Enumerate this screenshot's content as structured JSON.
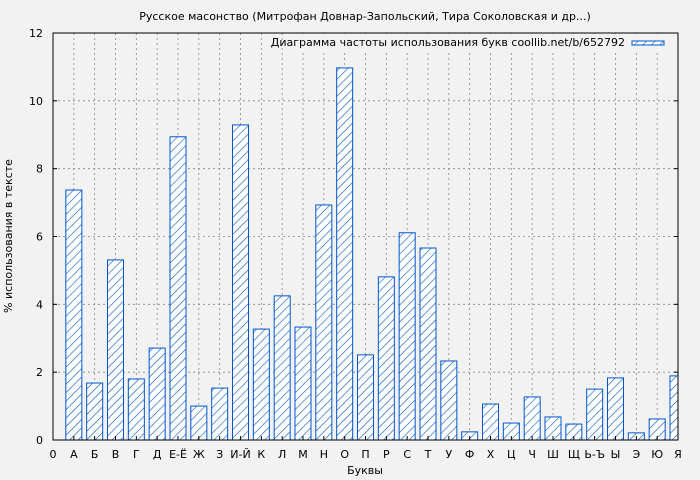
{
  "chart_data": {
    "type": "bar",
    "title": "Русское масонство (Митрофан Довнар-Запольский, Тира Соколовская и др...)",
    "xlabel": "Буквы",
    "ylabel": "% использования в тексте",
    "x_zero_label": "0",
    "categories": [
      "А",
      "Б",
      "В",
      "Г",
      "Д",
      "Е-Ё",
      "Ж",
      "З",
      "И-Й",
      "К",
      "Л",
      "М",
      "Н",
      "О",
      "П",
      "Р",
      "С",
      "Т",
      "У",
      "Ф",
      "Х",
      "Ц",
      "Ч",
      "Ш",
      "Щ",
      "Ь-Ъ",
      "Ы",
      "Э",
      "Ю",
      "Я"
    ],
    "series": [
      {
        "name": "Диаграмма частоты использования букв coollib.net/b/652792",
        "values": [
          7.37,
          1.68,
          5.31,
          1.8,
          2.71,
          8.94,
          1.0,
          1.53,
          9.29,
          3.27,
          4.25,
          3.33,
          6.93,
          10.97,
          2.51,
          4.81,
          6.11,
          5.66,
          2.33,
          0.24,
          1.06,
          0.5,
          1.27,
          0.68,
          0.47,
          1.5,
          1.83,
          0.21,
          0.62,
          1.89
        ]
      }
    ],
    "ylim": [
      0,
      12
    ],
    "yticks": [
      0,
      2,
      4,
      6,
      8,
      10,
      12
    ],
    "grid": true,
    "legend_position": "top-right",
    "bar_color": "#0055cc",
    "bar_fill": "hatched"
  }
}
